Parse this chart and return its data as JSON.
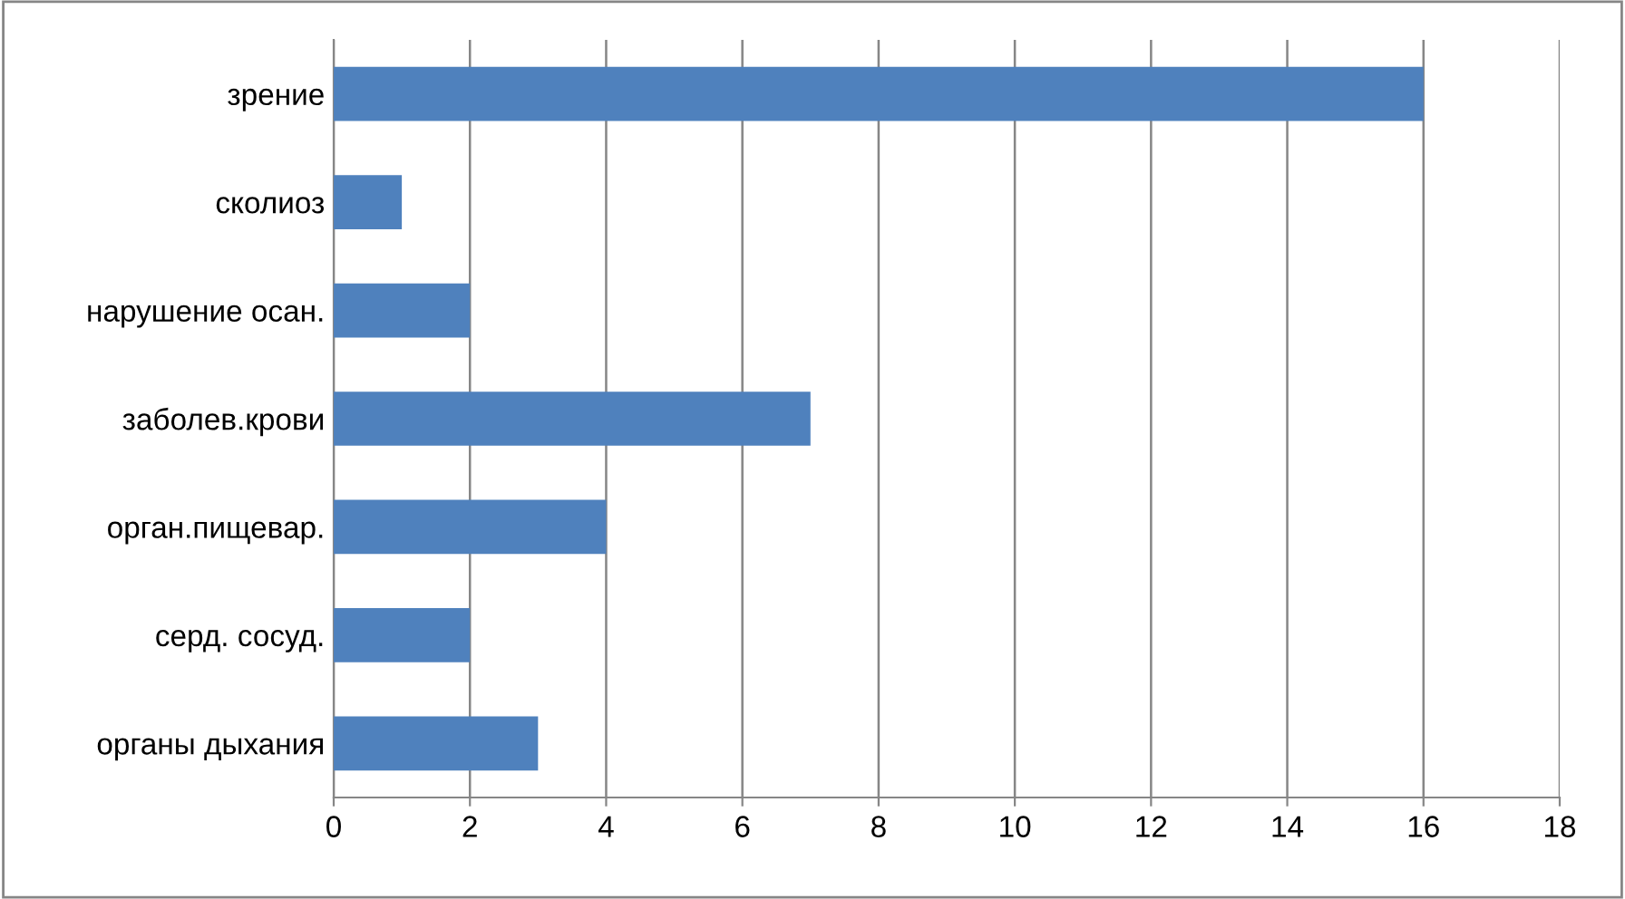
{
  "chart_data": {
    "type": "bar",
    "orientation": "horizontal",
    "categories": [
      "зрение",
      "сколиоз",
      "нарушение осан.",
      "заболев.крови",
      "орган.пищевар.",
      "серд. сосуд.",
      "органы дыхания"
    ],
    "values": [
      16,
      1,
      2,
      7,
      4,
      2,
      3
    ],
    "color": "#4f81bd",
    "xlim": [
      0,
      18
    ],
    "xticks": [
      0,
      2,
      4,
      6,
      8,
      10,
      12,
      14,
      16,
      18
    ],
    "grid": "x",
    "legend": false
  }
}
